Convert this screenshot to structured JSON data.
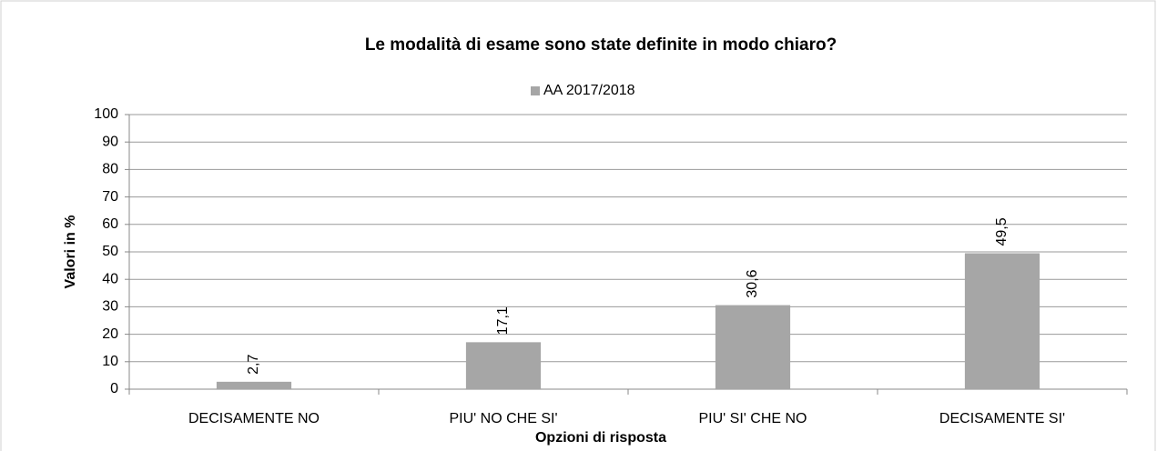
{
  "chart_data": {
    "type": "bar",
    "title": "Le modalità di esame sono state definite in modo chiaro?",
    "categories": [
      "DECISAMENTE NO",
      "PIU' NO CHE SI'",
      "PIU' SI' CHE NO",
      "DECISAMENTE SI'"
    ],
    "series": [
      {
        "name": "AA 2017/2018",
        "color": "#a6a6a6",
        "values": [
          2.7,
          17.1,
          30.6,
          49.5
        ],
        "value_labels": [
          "2,7",
          "17,1",
          "30,6",
          "49,5"
        ]
      }
    ],
    "ylim": [
      0,
      100
    ],
    "yticks": [
      0,
      10,
      20,
      30,
      40,
      50,
      60,
      70,
      80,
      90,
      100
    ],
    "xlabel": "Opzioni di risposta",
    "ylabel": "Valori in %",
    "grid": true,
    "legend": "top"
  }
}
